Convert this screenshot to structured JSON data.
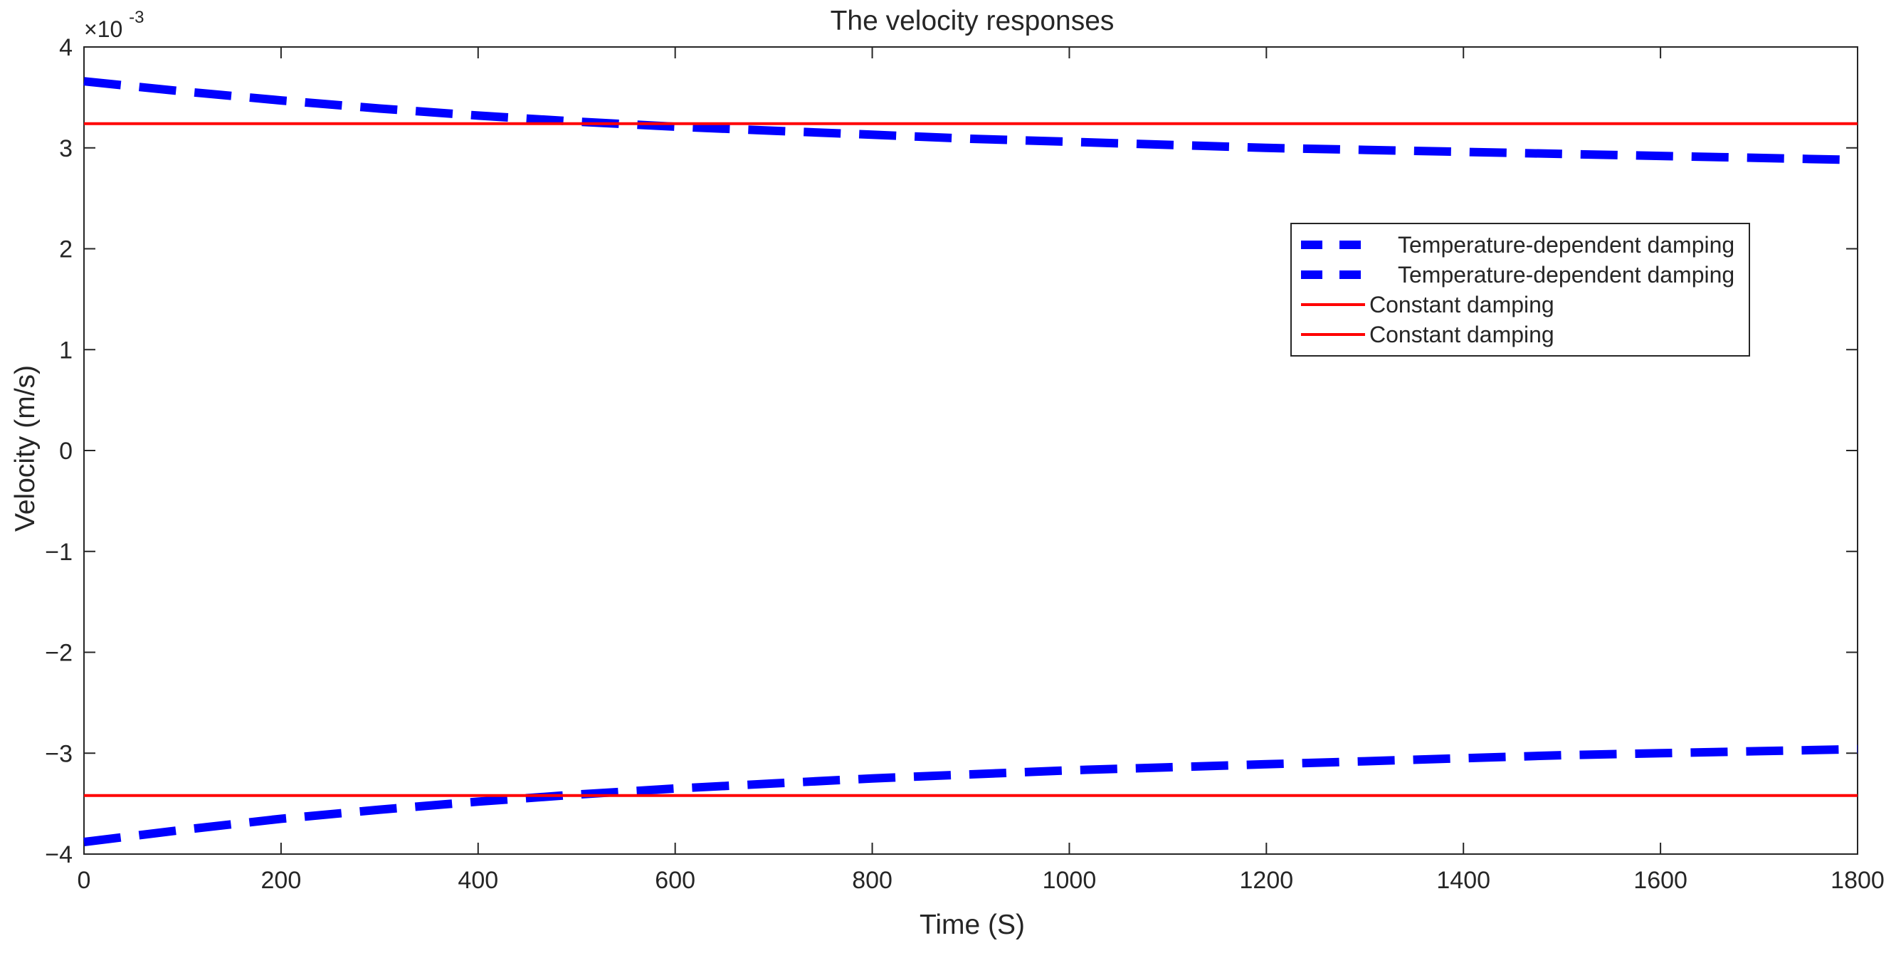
{
  "chart_data": {
    "type": "line",
    "title": "The velocity responses",
    "xlabel": "Time (S)",
    "ylabel": "Velocity (m/s)",
    "exponent_label": {
      "base": "×10",
      "power": "-3"
    },
    "xlim": [
      0,
      1800
    ],
    "ylim": [
      -4,
      4
    ],
    "y_scale": 0.001,
    "x_ticks": [
      0,
      200,
      400,
      600,
      800,
      1000,
      1200,
      1400,
      1600,
      1800
    ],
    "y_ticks": [
      -4,
      -3,
      -2,
      -1,
      0,
      1,
      2,
      3,
      4
    ],
    "x_tick_labels": [
      "0",
      "200",
      "400",
      "600",
      "800",
      "1000",
      "1200",
      "1400",
      "1600",
      "1800"
    ],
    "y_tick_labels": [
      "−4",
      "−3",
      "−2",
      "−1",
      "0",
      "1",
      "2",
      "3",
      "4"
    ],
    "grid": false,
    "legend_position": "right",
    "series": [
      {
        "name": "Temperature-dependent damping",
        "style": "dashed",
        "color": "#0000ff",
        "x": [
          0,
          100,
          200,
          300,
          400,
          500,
          600,
          700,
          800,
          900,
          1000,
          1100,
          1200,
          1300,
          1400,
          1500,
          1600,
          1700,
          1800
        ],
        "y": [
          3.66,
          3.56,
          3.47,
          3.39,
          3.32,
          3.26,
          3.21,
          3.17,
          3.13,
          3.09,
          3.06,
          3.03,
          3.0,
          2.98,
          2.96,
          2.94,
          2.92,
          2.9,
          2.88
        ]
      },
      {
        "name": "Temperature-dependent damping",
        "style": "dashed",
        "color": "#0000ff",
        "x": [
          0,
          100,
          200,
          300,
          400,
          500,
          600,
          700,
          800,
          900,
          1000,
          1100,
          1200,
          1300,
          1400,
          1500,
          1600,
          1700,
          1800
        ],
        "y": [
          -3.88,
          -3.76,
          -3.65,
          -3.56,
          -3.48,
          -3.41,
          -3.35,
          -3.3,
          -3.25,
          -3.21,
          -3.17,
          -3.14,
          -3.11,
          -3.08,
          -3.05,
          -3.02,
          -3.0,
          -2.98,
          -2.96
        ]
      },
      {
        "name": "Constant damping",
        "style": "solid",
        "color": "#ff0000",
        "x": [
          0,
          1800
        ],
        "y": [
          3.24,
          3.24
        ]
      },
      {
        "name": "Constant damping",
        "style": "solid",
        "color": "#ff0000",
        "x": [
          0,
          1800
        ],
        "y": [
          -3.42,
          -3.42
        ]
      }
    ]
  }
}
